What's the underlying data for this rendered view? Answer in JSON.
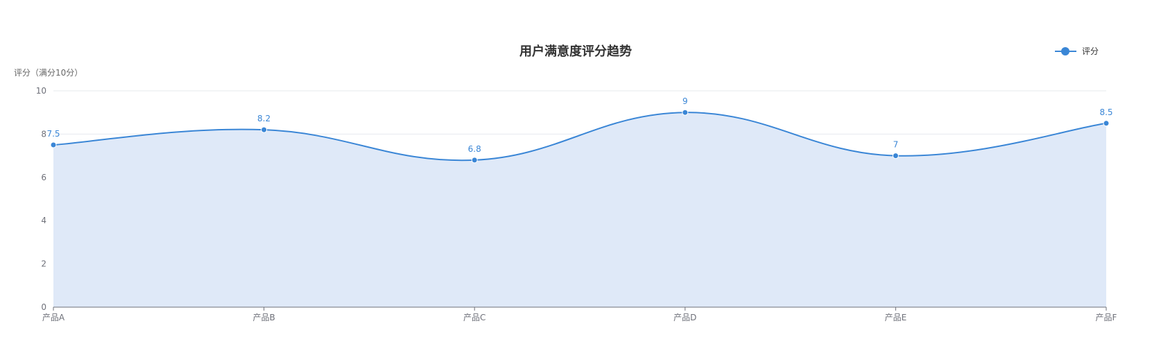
{
  "chart_data": {
    "type": "area",
    "title": "用户满意度评分趋势",
    "ylabel": "评分（满分10分）",
    "xlabel": "",
    "categories": [
      "产品A",
      "产品B",
      "产品C",
      "产品D",
      "产品E",
      "产品F"
    ],
    "series": [
      {
        "name": "评分",
        "values": [
          7.5,
          8.2,
          6.8,
          9,
          7,
          8.5
        ]
      }
    ],
    "data_labels": [
      "7.5",
      "8.2",
      "6.8",
      "9",
      "7",
      "8.5"
    ],
    "yticks": [
      "0",
      "2",
      "4",
      "6",
      "8",
      "10"
    ],
    "ylim": [
      0,
      10
    ],
    "smooth": true,
    "grid": true,
    "legend_position": "top-right",
    "colors": {
      "line": "#3a86d6",
      "area": "#dfe9f8"
    }
  }
}
